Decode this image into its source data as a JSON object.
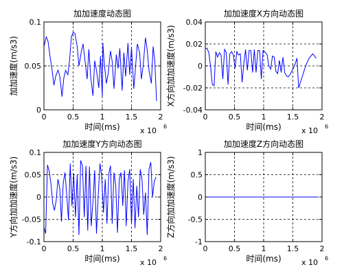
{
  "figure": {
    "background": "#ffffff",
    "line_color": "#0000ff",
    "grid_color": "#000000"
  },
  "chart_data": [
    {
      "type": "line",
      "title": "加加速度动态图",
      "xlabel": "时间(ms)",
      "ylabel": "加加速度(m/s3)",
      "x_multiplier": "x 10",
      "x_multiplier_exp": "6",
      "xlim": [
        0,
        2
      ],
      "ylim": [
        0,
        0.1
      ],
      "xticks": [
        0,
        0.5,
        1,
        1.5,
        2
      ],
      "xtick_labels": [
        "0",
        "0.5",
        "1",
        "1.5",
        "2"
      ],
      "yticks": [
        0,
        0.05,
        0.1
      ],
      "ytick_labels": [
        "0",
        "0.05",
        "0.1"
      ],
      "grid": true,
      "series": [
        {
          "x": [
            0.0,
            0.04,
            0.07,
            0.1,
            0.14,
            0.17,
            0.2,
            0.24,
            0.27,
            0.31,
            0.34,
            0.37,
            0.41,
            0.44,
            0.47,
            0.5,
            0.53,
            0.57,
            0.6,
            0.64,
            0.67,
            0.7,
            0.74,
            0.77,
            0.8,
            0.84,
            0.87,
            0.9,
            0.94,
            0.97,
            1.0,
            1.01,
            1.03,
            1.07,
            1.1,
            1.14,
            1.17,
            1.2,
            1.24,
            1.27,
            1.3,
            1.34,
            1.37,
            1.4,
            1.44,
            1.47,
            1.5,
            1.54,
            1.57,
            1.6,
            1.64,
            1.67,
            1.7,
            1.74,
            1.77,
            1.8,
            1.84,
            1.87,
            1.9,
            1.93
          ],
          "y": [
            0.072,
            0.083,
            0.078,
            0.063,
            0.045,
            0.028,
            0.038,
            0.045,
            0.039,
            0.015,
            0.036,
            0.045,
            0.04,
            0.057,
            0.083,
            0.088,
            0.087,
            0.072,
            0.05,
            0.066,
            0.075,
            0.058,
            0.035,
            0.069,
            0.038,
            0.016,
            0.056,
            0.045,
            0.025,
            0.061,
            0.015,
            0.076,
            0.055,
            0.03,
            0.041,
            0.067,
            0.055,
            0.024,
            0.063,
            0.047,
            0.07,
            0.022,
            0.065,
            0.038,
            0.076,
            0.04,
            0.071,
            0.024,
            0.05,
            0.075,
            0.065,
            0.035,
            0.05,
            0.082,
            0.068,
            0.045,
            0.03,
            0.072,
            0.055,
            0.01
          ]
        }
      ]
    },
    {
      "type": "line",
      "title": "加加速度X方向动态图",
      "xlabel": "时间(ms)",
      "ylabel": "X方向加加速度(m/s3)",
      "x_multiplier": "x 10",
      "x_multiplier_exp": "6",
      "xlim": [
        0,
        2
      ],
      "ylim": [
        -0.04,
        0.04
      ],
      "xticks": [
        0,
        0.5,
        1,
        1.5,
        2
      ],
      "xtick_labels": [
        "0",
        "0.5",
        "1",
        "1.5",
        "2"
      ],
      "yticks": [
        -0.04,
        -0.02,
        0,
        0.02,
        0.04
      ],
      "ytick_labels": [
        "-0.04",
        "-0.02",
        "0",
        "0.02",
        "0.04"
      ],
      "grid": true,
      "series": [
        {
          "x": [
            0.0,
            0.03,
            0.06,
            0.09,
            0.12,
            0.15,
            0.18,
            0.21,
            0.24,
            0.27,
            0.3,
            0.33,
            0.36,
            0.39,
            0.42,
            0.45,
            0.48,
            0.51,
            0.54,
            0.57,
            0.6,
            0.63,
            0.66,
            0.69,
            0.72,
            0.75,
            0.78,
            0.81,
            0.84,
            0.87,
            0.9,
            0.93,
            0.96,
            0.99,
            1.0,
            1.03,
            1.06,
            1.09,
            1.12,
            1.15,
            1.18,
            1.21,
            1.24,
            1.27,
            1.3,
            1.33,
            1.36,
            1.39,
            1.42,
            1.45,
            1.48,
            1.51,
            1.54,
            1.57,
            1.6,
            1.63,
            1.66,
            1.69,
            1.72,
            1.75,
            1.78,
            1.81,
            1.84,
            1.87,
            1.9
          ],
          "y": [
            0.016,
            0.016,
            0.012,
            0.0,
            -0.017,
            -0.018,
            0.013,
            0.008,
            0.012,
            0.01,
            -0.012,
            0.015,
            0.012,
            -0.017,
            0.011,
            0.013,
            0.01,
            -0.002,
            0.013,
            0.01,
            0.011,
            -0.015,
            0.002,
            0.015,
            -0.004,
            0.014,
            0.014,
            -0.006,
            0.015,
            -0.006,
            0.014,
            0.014,
            -0.012,
            0.014,
            0.014,
            0.012,
            0.01,
            0.0,
            -0.003,
            0.009,
            0.008,
            -0.005,
            -0.007,
            0.005,
            -0.006,
            0.008,
            -0.006,
            -0.009,
            -0.01,
            -0.008,
            -0.005,
            -0.002,
            0.002,
            0.007,
            -0.02,
            -0.015,
            -0.01,
            -0.005,
            0.0,
            0.004,
            0.007,
            0.009,
            0.011,
            0.009,
            0.007
          ]
        }
      ]
    },
    {
      "type": "line",
      "title": "加加速度Y方向动态图",
      "xlabel": "时间(ms)",
      "ylabel": "Y方向加加速度(m/s3)",
      "x_multiplier": "x 10",
      "x_multiplier_exp": "6",
      "xlim": [
        0,
        2
      ],
      "ylim": [
        -0.1,
        0.1
      ],
      "xticks": [
        0,
        0.5,
        1,
        1.5,
        2
      ],
      "xtick_labels": [
        "0",
        "0.5",
        "1",
        "1.5",
        "2"
      ],
      "yticks": [
        -0.1,
        -0.05,
        0,
        0.05,
        0.1
      ],
      "ytick_labels": [
        "-0.1",
        "-0.05",
        "0",
        "0.05",
        "0.1"
      ],
      "grid": true,
      "series": [
        {
          "x": [
            0.0,
            0.03,
            0.06,
            0.09,
            0.12,
            0.15,
            0.18,
            0.21,
            0.24,
            0.27,
            0.3,
            0.33,
            0.36,
            0.39,
            0.42,
            0.45,
            0.48,
            0.51,
            0.54,
            0.57,
            0.6,
            0.63,
            0.66,
            0.69,
            0.72,
            0.75,
            0.78,
            0.81,
            0.84,
            0.87,
            0.9,
            0.93,
            0.96,
            0.99,
            1.02,
            1.05,
            1.08,
            1.11,
            1.14,
            1.17,
            1.2,
            1.23,
            1.26,
            1.29,
            1.32,
            1.35,
            1.38,
            1.41,
            1.44,
            1.47,
            1.5,
            1.53,
            1.56,
            1.59,
            1.62,
            1.65,
            1.68,
            1.71,
            1.74,
            1.77,
            1.8,
            1.83,
            1.86,
            1.89,
            1.92
          ],
          "y": [
            -0.068,
            -0.082,
            0.072,
            0.058,
            0.03,
            -0.015,
            -0.03,
            -0.008,
            0.04,
            0.02,
            -0.055,
            0.03,
            0.055,
            0.005,
            -0.052,
            0.075,
            -0.02,
            0.052,
            -0.045,
            0.05,
            -0.085,
            0.082,
            0.07,
            -0.045,
            0.07,
            -0.075,
            0.068,
            -0.065,
            -0.01,
            0.06,
            -0.082,
            0.005,
            0.075,
            0.045,
            -0.035,
            0.04,
            -0.06,
            0.052,
            0.07,
            -0.06,
            0.055,
            0.025,
            -0.08,
            0.04,
            0.055,
            -0.02,
            0.06,
            -0.065,
            0.035,
            0.062,
            -0.06,
            0.04,
            -0.07,
            0.025,
            -0.045,
            0.062,
            0.04,
            -0.04,
            0.01,
            -0.085,
            0.062,
            0.078,
            0.0,
            0.035,
            0.045
          ]
        }
      ]
    },
    {
      "type": "line",
      "title": "加加速度Z方向动态图",
      "xlabel": "时间(ms)",
      "ylabel": "Z方向加加速度(m/s3)",
      "x_multiplier": "x 10",
      "x_multiplier_exp": "6",
      "xlim": [
        0,
        2
      ],
      "ylim": [
        -1,
        1
      ],
      "xticks": [
        0,
        0.5,
        1,
        1.5,
        2
      ],
      "xtick_labels": [
        "0",
        "0.5",
        "1",
        "1.5",
        "2"
      ],
      "yticks": [
        -1,
        -0.5,
        0,
        0.5,
        1
      ],
      "ytick_labels": [
        "-1",
        "-0.5",
        "0",
        "0.5",
        "1"
      ],
      "grid": true,
      "series": [
        {
          "x": [
            0.0,
            1.93
          ],
          "y": [
            0,
            0
          ]
        }
      ]
    }
  ]
}
